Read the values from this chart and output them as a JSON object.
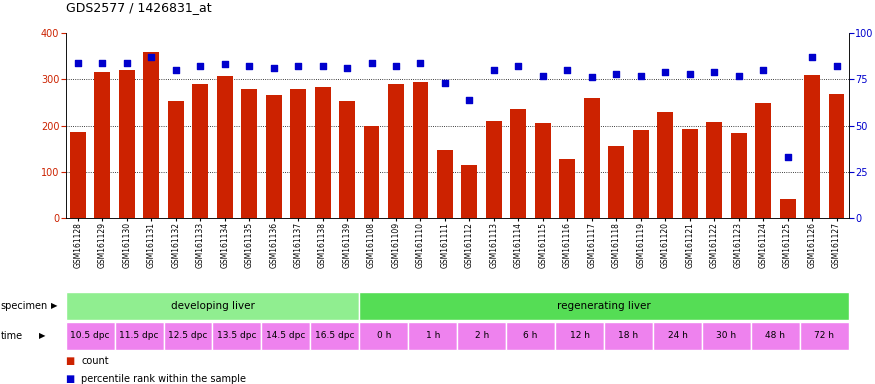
{
  "title": "GDS2577 / 1426831_at",
  "samples": [
    "GSM161128",
    "GSM161129",
    "GSM161130",
    "GSM161131",
    "GSM161132",
    "GSM161133",
    "GSM161134",
    "GSM161135",
    "GSM161136",
    "GSM161137",
    "GSM161138",
    "GSM161139",
    "GSM161108",
    "GSM161109",
    "GSM161110",
    "GSM161111",
    "GSM161112",
    "GSM161113",
    "GSM161114",
    "GSM161115",
    "GSM161116",
    "GSM161117",
    "GSM161118",
    "GSM161119",
    "GSM161120",
    "GSM161121",
    "GSM161122",
    "GSM161123",
    "GSM161124",
    "GSM161125",
    "GSM161126",
    "GSM161127"
  ],
  "counts": [
    185,
    315,
    320,
    358,
    252,
    290,
    306,
    278,
    265,
    280,
    283,
    252,
    200,
    290,
    293,
    147,
    115,
    210,
    235,
    205,
    128,
    260,
    155,
    190,
    230,
    193,
    207,
    183,
    248,
    42,
    310,
    268
  ],
  "percentiles": [
    84,
    84,
    84,
    87,
    80,
    82,
    83,
    82,
    81,
    82,
    82,
    81,
    84,
    82,
    84,
    73,
    64,
    80,
    82,
    77,
    80,
    76,
    78,
    77,
    79,
    78,
    79,
    77,
    80,
    33,
    87,
    82
  ],
  "specimen_groups": [
    {
      "label": "developing liver",
      "color": "#90EE90",
      "start": 0,
      "end": 12
    },
    {
      "label": "regenerating liver",
      "color": "#55DD55",
      "start": 12,
      "end": 32
    }
  ],
  "time_labels": [
    {
      "label": "10.5 dpc",
      "start": 0,
      "end": 2
    },
    {
      "label": "11.5 dpc",
      "start": 2,
      "end": 4
    },
    {
      "label": "12.5 dpc",
      "start": 4,
      "end": 6
    },
    {
      "label": "13.5 dpc",
      "start": 6,
      "end": 8
    },
    {
      "label": "14.5 dpc",
      "start": 8,
      "end": 10
    },
    {
      "label": "16.5 dpc",
      "start": 10,
      "end": 12
    },
    {
      "label": "0 h",
      "start": 12,
      "end": 14
    },
    {
      "label": "1 h",
      "start": 14,
      "end": 16
    },
    {
      "label": "2 h",
      "start": 16,
      "end": 18
    },
    {
      "label": "6 h",
      "start": 18,
      "end": 20
    },
    {
      "label": "12 h",
      "start": 20,
      "end": 22
    },
    {
      "label": "18 h",
      "start": 22,
      "end": 24
    },
    {
      "label": "24 h",
      "start": 24,
      "end": 26
    },
    {
      "label": "30 h",
      "start": 26,
      "end": 28
    },
    {
      "label": "48 h",
      "start": 28,
      "end": 30
    },
    {
      "label": "72 h",
      "start": 30,
      "end": 32
    }
  ],
  "bar_color": "#CC2200",
  "dot_color": "#0000CC",
  "ylim_left": [
    0,
    400
  ],
  "ylim_right": [
    0,
    100
  ],
  "yticks_left": [
    0,
    100,
    200,
    300,
    400
  ],
  "yticks_right": [
    0,
    25,
    50,
    75,
    100
  ],
  "grid_values": [
    100,
    200,
    300
  ],
  "bg_color": "#FFFFFF",
  "time_color_dpc": "#EE82EE",
  "time_color_h": "#EE82EE",
  "title_fontsize": 9,
  "legend_items": [
    {
      "color": "#CC2200",
      "label": "count"
    },
    {
      "color": "#0000CC",
      "label": "percentile rank within the sample"
    }
  ]
}
